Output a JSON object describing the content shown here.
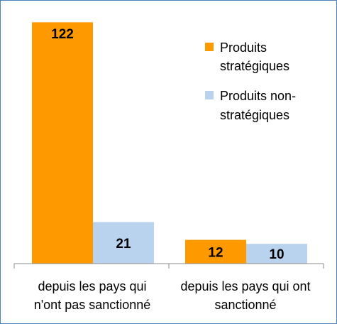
{
  "chart_data": {
    "type": "bar",
    "categories": [
      [
        "depuis les pays qui",
        "n'ont pas sanctionné"
      ],
      [
        "depuis les pays qui ont",
        "sanctionné"
      ]
    ],
    "series": [
      {
        "name": [
          "Produits",
          "stratégiques"
        ],
        "color": "#ff9900",
        "values": [
          122,
          12
        ]
      },
      {
        "name": [
          "Produits non-",
          "stratégiques"
        ],
        "color": "#b9d3ee",
        "values": [
          21,
          10
        ]
      }
    ],
    "data_labels": [
      [
        "122",
        "21"
      ],
      [
        "12",
        "10"
      ]
    ],
    "ylim": [
      0,
      125
    ],
    "grid": false,
    "legend_position": "top-right"
  }
}
